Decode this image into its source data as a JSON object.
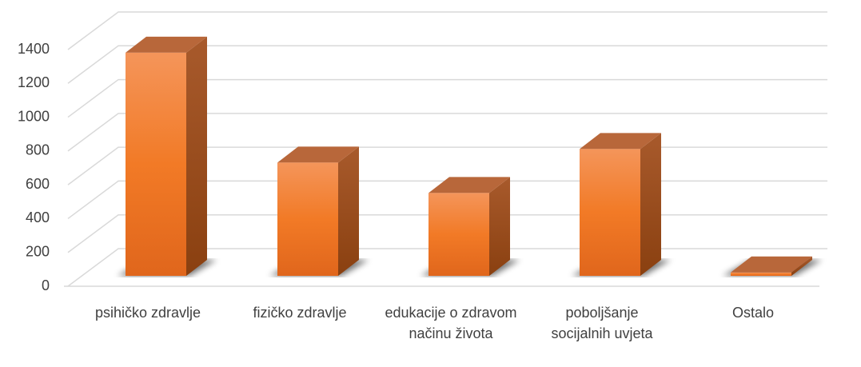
{
  "chart_data": {
    "type": "bar3d",
    "categories": [
      "psihičko zdravlje",
      "fizičko zdravlje",
      "edukacije o zdravom načinu života",
      "poboljšanje socijalnih uvjeta",
      "Ostalo"
    ],
    "values": [
      1320,
      670,
      490,
      750,
      20
    ],
    "color": "#f07a2a",
    "ylim": [
      0,
      1400
    ],
    "yticks": [
      0,
      200,
      400,
      600,
      800,
      1000,
      1200,
      1400
    ],
    "grid": true
  }
}
